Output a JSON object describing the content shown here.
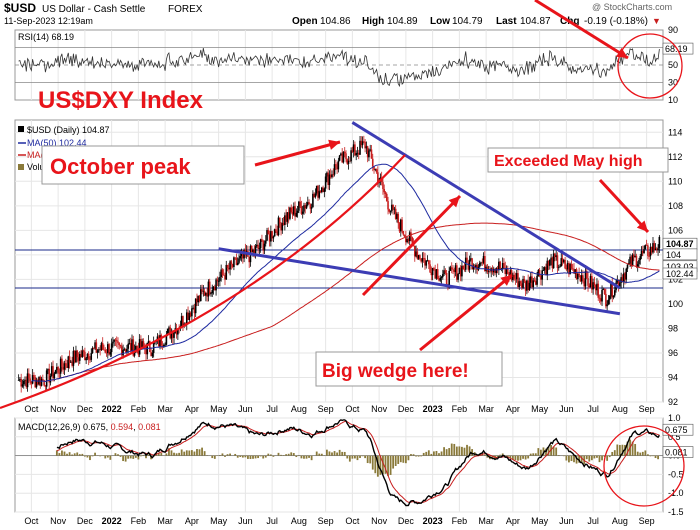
{
  "header": {
    "symbol": "$USD",
    "name": "US Dollar - Cash Settle",
    "exchange": "FOREX",
    "datetime": "11-Sep-2023 12:19am",
    "watermark": "@ StockCharts.com",
    "open_label": "Open",
    "open": "104.86",
    "high_label": "High",
    "high": "104.89",
    "low_label": "Low",
    "low": "104.79",
    "last_label": "Last",
    "last": "104.87",
    "chg_label": "Chg",
    "chg": "-0.19 (-0.18%)",
    "chg_arrow": "▼"
  },
  "annotations": {
    "index_title": "US$DXY Index",
    "october_peak": "October peak",
    "exceeded_may_high": "Exceeded May high",
    "big_wedge": "Big wedge here!"
  },
  "colors": {
    "annotation_red": "#e8141a",
    "wedge_blue": "#3c3cb4",
    "ma50_blue": "#1e2aa0",
    "ma200_red": "#c81e1e",
    "candle_up": "#000000",
    "candle_down": "#c81e1e",
    "volume_olive": "#8a7a3a",
    "grid": "#e6e6e6"
  },
  "chart_data": [
    {
      "type": "line",
      "panel": "RSI",
      "label": "RSI(14) 68.19",
      "value": 68.19,
      "ylim": [
        10,
        90
      ],
      "yticks": [
        10,
        30,
        50,
        70,
        90
      ],
      "reference_lines": [
        30,
        50,
        70
      ]
    },
    {
      "type": "candlestick",
      "panel": "price",
      "legend": [
        {
          "label": "$USD (Daily) 104.87",
          "color": "#000000"
        },
        {
          "label": "MA(50) 102.44",
          "color": "#1e2aa0"
        },
        {
          "label": "MA(200) 103.03",
          "color": "#c81e1e"
        },
        {
          "label": "Volume undef",
          "color": "#8a7a3a"
        }
      ],
      "ylim": [
        92,
        115
      ],
      "yticks": [
        92,
        94,
        96,
        98,
        100,
        102,
        104,
        106,
        108,
        110,
        112,
        114
      ],
      "price_tags": [
        {
          "text": "104.87",
          "value": 104.87
        },
        {
          "text": "104",
          "value": 104.0
        },
        {
          "text": "103.03",
          "value": 103.03
        },
        {
          "text": "102.44",
          "value": 102.44
        }
      ],
      "x_axis": [
        "Oct",
        "Nov",
        "Dec",
        "2022",
        "Feb",
        "Mar",
        "Apr",
        "May",
        "Jun",
        "Jul",
        "Aug",
        "Sep",
        "Oct",
        "Nov",
        "Dec",
        "2023",
        "Feb",
        "Mar",
        "Apr",
        "May",
        "Jun",
        "Jul",
        "Aug",
        "Sep"
      ],
      "closes_by_month": [
        {
          "month": "2021-10",
          "close": 93.8
        },
        {
          "month": "2021-11",
          "close": 95.5
        },
        {
          "month": "2021-12",
          "close": 96.3
        },
        {
          "month": "2022-01",
          "close": 96.5
        },
        {
          "month": "2022-02",
          "close": 96.4
        },
        {
          "month": "2022-03",
          "close": 98.2
        },
        {
          "month": "2022-04",
          "close": 101.0
        },
        {
          "month": "2022-05",
          "close": 103.0
        },
        {
          "month": "2022-06",
          "close": 104.5
        },
        {
          "month": "2022-07",
          "close": 107.0
        },
        {
          "month": "2022-08",
          "close": 108.5
        },
        {
          "month": "2022-09",
          "close": 111.5
        },
        {
          "month": "2022-10",
          "close": 113.0
        },
        {
          "month": "2022-11",
          "close": 107.5
        },
        {
          "month": "2022-12",
          "close": 104.0
        },
        {
          "month": "2023-01",
          "close": 102.0
        },
        {
          "month": "2023-02",
          "close": 103.5
        },
        {
          "month": "2023-03",
          "close": 103.0
        },
        {
          "month": "2023-04",
          "close": 101.5
        },
        {
          "month": "2023-05",
          "close": 103.5
        },
        {
          "month": "2023-06",
          "close": 102.5
        },
        {
          "month": "2023-07",
          "close": 100.5
        },
        {
          "month": "2023-08",
          "close": 103.5
        },
        {
          "month": "2023-09",
          "close": 104.87
        }
      ],
      "horizontal_lines": [
        104.4,
        101.3
      ],
      "trendlines": [
        {
          "from": {
            "month": "2022-10",
            "value": 114.8
          },
          "to": {
            "month": "2023-08",
            "value": 101.3
          }
        },
        {
          "from": {
            "month": "2022-05",
            "value": 104.5
          },
          "to": {
            "month": "2023-08",
            "value": 99.2
          }
        }
      ]
    },
    {
      "type": "line",
      "panel": "MACD",
      "label_prefix": "MACD(12,26,9)",
      "macd": "0.675",
      "signal": "0.594",
      "histogram": "0.081",
      "ylim": [
        -1.5,
        1.0
      ],
      "yticks": [
        1.0,
        0.5,
        0.0,
        -0.5,
        -1.0,
        -1.5
      ],
      "value_tags": [
        {
          "text": "0.675",
          "value": 0.675
        },
        {
          "text": "0.081",
          "value": 0.081
        }
      ],
      "x_axis": [
        "Oct",
        "Nov",
        "Dec",
        "2022",
        "Feb",
        "Mar",
        "Apr",
        "May",
        "Jun",
        "Jul",
        "Aug",
        "Sep",
        "Oct",
        "Nov",
        "Dec",
        "2023",
        "Feb",
        "Mar",
        "Apr",
        "May",
        "Jun",
        "Jul",
        "Aug",
        "Sep"
      ]
    }
  ]
}
